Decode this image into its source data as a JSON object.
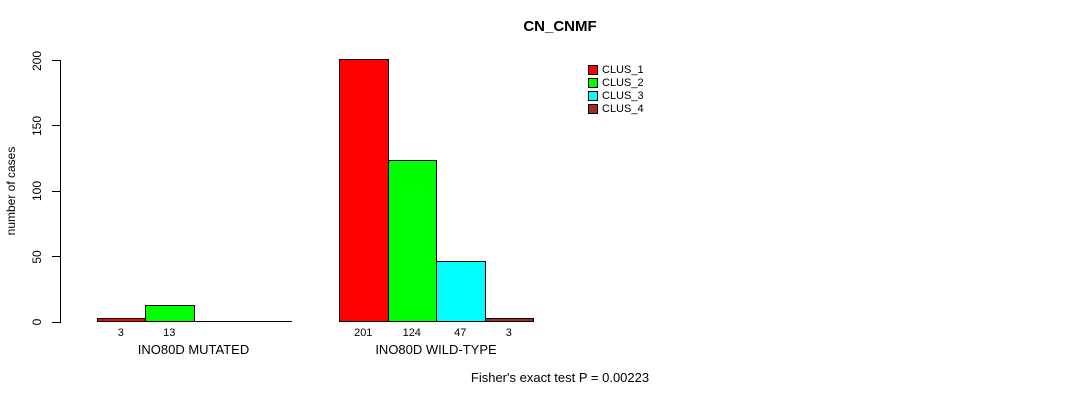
{
  "chart_data": {
    "type": "bar",
    "title": "CN_CNMF",
    "ylabel": "number of cases",
    "xlabel": "",
    "ylim": [
      0,
      201
    ],
    "yticks": [
      0,
      50,
      100,
      150,
      200
    ],
    "grid": false,
    "legend_position": "top-right",
    "series": [
      {
        "name": "CLUS_1",
        "color": "#FF0000"
      },
      {
        "name": "CLUS_2",
        "color": "#00FF00"
      },
      {
        "name": "CLUS_3",
        "color": "#00FFFF"
      },
      {
        "name": "CLUS_4",
        "color": "#A52A2A"
      }
    ],
    "groups": [
      {
        "label": "INO80D MUTATED",
        "values": [
          3,
          13,
          0,
          0
        ]
      },
      {
        "label": "INO80D WILD-TYPE",
        "values": [
          201,
          124,
          47,
          3
        ]
      }
    ],
    "footnote": "Fisher's exact test P = 0.00223"
  },
  "colors": {
    "background": "#FFFFFF",
    "axis": "#000000",
    "text": "#000000"
  }
}
